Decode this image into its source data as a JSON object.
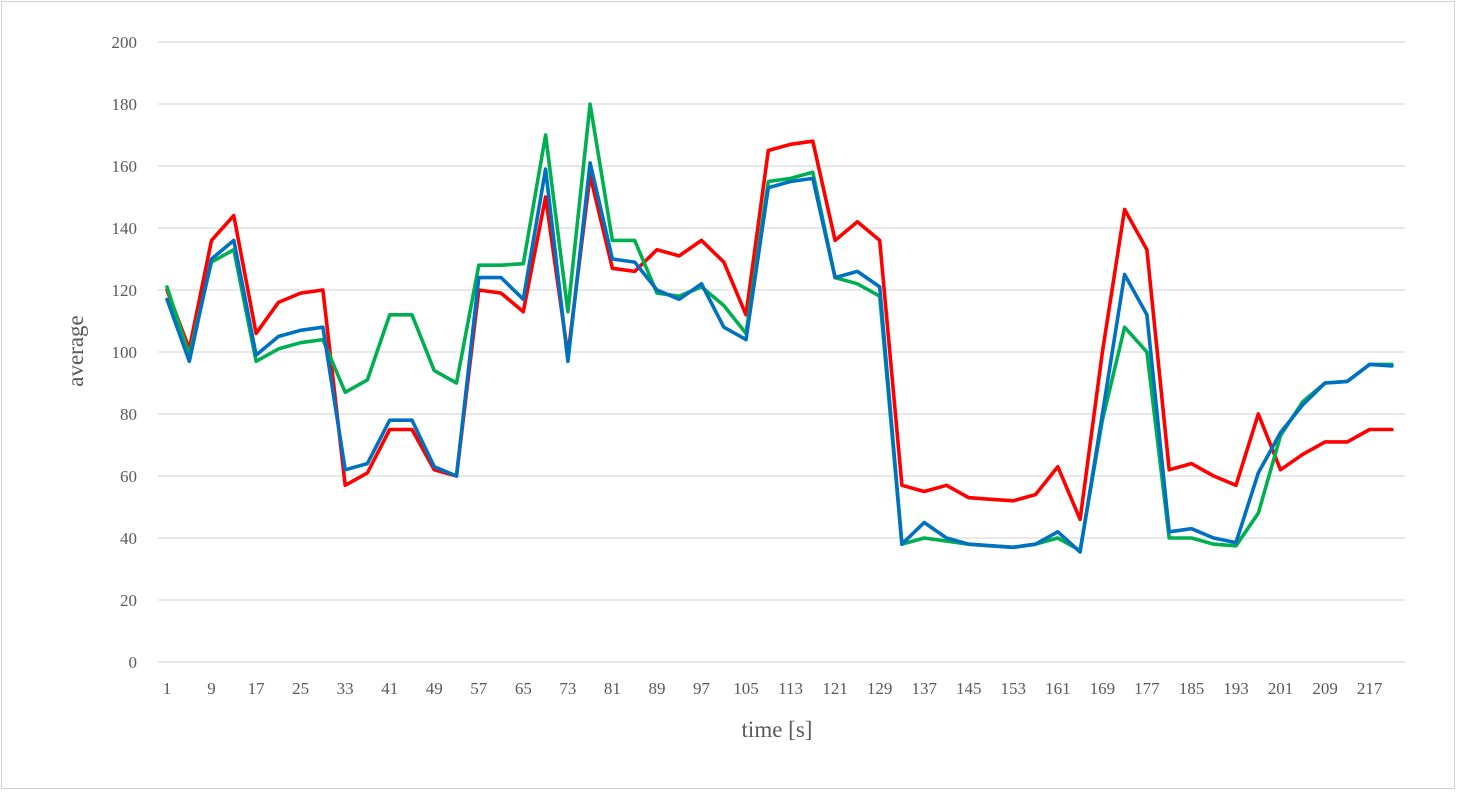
{
  "chart_data": {
    "type": "line",
    "title": "",
    "xlabel": "time [s]",
    "ylabel": "average",
    "ylim": [
      0,
      200
    ],
    "yticks": [
      0,
      20,
      40,
      60,
      80,
      100,
      120,
      140,
      160,
      180,
      200
    ],
    "xtick_labels": [
      "1",
      "9",
      "17",
      "25",
      "33",
      "41",
      "49",
      "57",
      "65",
      "73",
      "81",
      "89",
      "97",
      "105",
      "113",
      "121",
      "129",
      "137",
      "145",
      "153",
      "161",
      "169",
      "177",
      "185",
      "193",
      "201",
      "209",
      "217"
    ],
    "x": [
      1,
      5,
      9,
      13,
      17,
      21,
      25,
      29,
      33,
      37,
      41,
      45,
      49,
      53,
      57,
      61,
      65,
      69,
      73,
      77,
      81,
      85,
      89,
      93,
      97,
      101,
      105,
      109,
      113,
      117,
      121,
      125,
      129,
      133,
      137,
      141,
      145,
      149,
      153,
      157,
      161,
      165,
      169,
      173,
      177,
      181,
      185,
      189,
      193,
      197,
      201,
      205,
      209,
      213,
      217,
      221
    ],
    "grid": true,
    "legend": "none",
    "series": [
      {
        "color": "#ff0000",
        "values": [
          120,
          101,
          136,
          144,
          106,
          116,
          119,
          120,
          57,
          61,
          75,
          75,
          62,
          60,
          120,
          119,
          113,
          150,
          99,
          157,
          127,
          126,
          133,
          131,
          136,
          129,
          112,
          165,
          167,
          168,
          136,
          142,
          136,
          57,
          55,
          57,
          53,
          52.5,
          52,
          54,
          63,
          46,
          100,
          146,
          133,
          62,
          64,
          60,
          57,
          80,
          62,
          67,
          71,
          71,
          75,
          75
        ]
      },
      {
        "color": "#00b050",
        "values": [
          121,
          99,
          129,
          133,
          97,
          101,
          103,
          104,
          87,
          91,
          112,
          112,
          94,
          90,
          128,
          128,
          128.5,
          170,
          113,
          180,
          136,
          136,
          119,
          118,
          121,
          115,
          106,
          155,
          156,
          158,
          124,
          122,
          118,
          38,
          40,
          39,
          38,
          37.5,
          37,
          38,
          40,
          36,
          78,
          108,
          100,
          40,
          40,
          38,
          37.5,
          48,
          73,
          84,
          90,
          90.5,
          96,
          96
        ]
      },
      {
        "color": "#0070c0",
        "values": [
          117,
          97,
          130,
          136,
          99,
          105,
          107,
          108,
          62,
          64,
          78,
          78,
          63,
          60,
          124,
          124,
          117,
          159,
          97,
          161,
          130,
          129,
          120,
          117,
          122,
          108,
          104,
          153,
          155,
          156,
          124,
          126,
          121,
          38,
          45,
          40,
          38,
          37.5,
          37,
          38,
          42,
          35.5,
          80,
          125,
          112,
          42,
          43,
          40,
          38.5,
          61,
          74,
          83,
          90,
          90.5,
          96,
          95.5
        ]
      }
    ]
  }
}
